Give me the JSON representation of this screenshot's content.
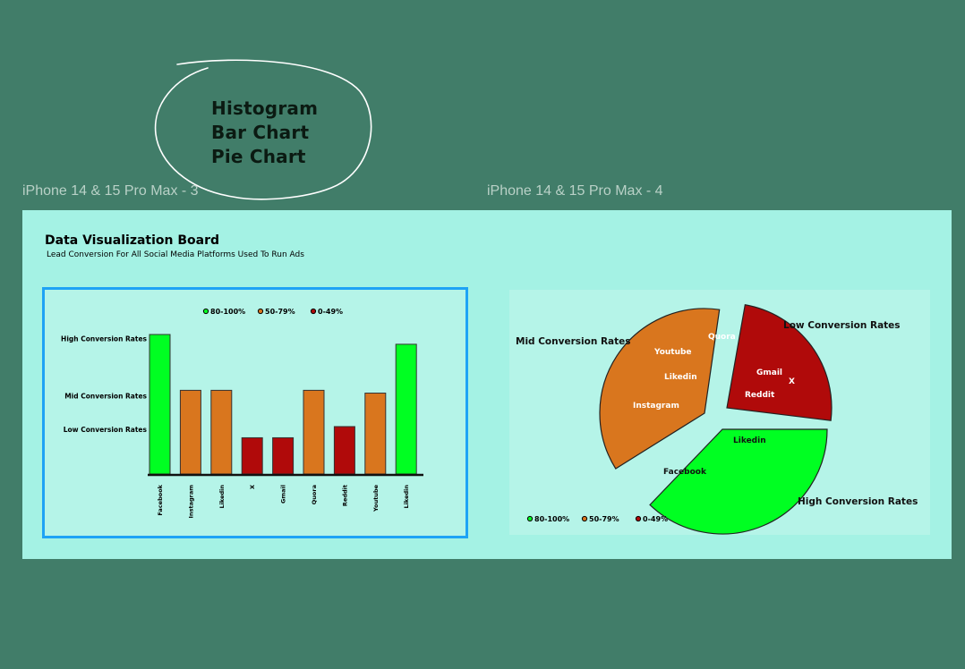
{
  "canvas": {
    "note_lines": [
      "Histogram",
      "Bar Chart",
      "Pie Chart"
    ],
    "frames": [
      {
        "label": "iPhone 14 & 15 Pro Max - 3"
      },
      {
        "label": "iPhone 14 & 15 Pro Max - 4"
      }
    ]
  },
  "board": {
    "title": "Data Visualization Board",
    "subtitle": "Lead Conversion For All Social Media Platforms Used To Run Ads"
  },
  "colors": {
    "high": "#00ff22",
    "mid": "#d9761e",
    "low": "#b00a0a",
    "canvas_bg": "#417d69",
    "board_bg": "#a4f2e4",
    "panel_bg": "#b5f4e8",
    "selection": "#1ea3f5"
  },
  "chart_data": [
    {
      "type": "bar",
      "categories": [
        "Facebook",
        "Instagram",
        "Likedin",
        "X",
        "Gmail",
        "Quora",
        "Reddit",
        "Youtube",
        "Likedin"
      ],
      "series": [
        {
          "values": [
            100,
            60,
            60,
            26,
            26,
            60,
            34,
            58,
            93
          ]
        }
      ],
      "value_unit": "%",
      "tier_by_category": [
        "high",
        "mid",
        "mid",
        "low",
        "low",
        "mid",
        "low",
        "mid",
        "high"
      ],
      "ylim": [
        0,
        100
      ],
      "y_tier_labels": [
        {
          "text": "High Conversion Rates",
          "level": 97
        },
        {
          "text": "Mid Conversion Rates",
          "level": 56
        },
        {
          "text": "Low Conversion Rates",
          "level": 32
        }
      ],
      "legend": [
        "80-100%",
        "50-79%",
        "0-49%"
      ],
      "legend_position": "top",
      "grid": false
    },
    {
      "type": "pie",
      "slices": [
        {
          "label": "High Conversion Rates",
          "value": 38,
          "tier": "high",
          "members": [
            "Likedin",
            "Facebook"
          ]
        },
        {
          "label": "Mid Conversion Rates",
          "value": 37,
          "tier": "mid",
          "members": [
            "Quora",
            "Youtube",
            "Likedin",
            "Instagram"
          ]
        },
        {
          "label": "Low Conversion Rates",
          "value": 25,
          "tier": "low",
          "members": [
            "Gmail",
            "X",
            "Reddit"
          ]
        }
      ],
      "exploded": true,
      "legend": [
        "80-100%",
        "50-79%",
        "0-49%"
      ],
      "legend_position": "bottom-left"
    }
  ]
}
